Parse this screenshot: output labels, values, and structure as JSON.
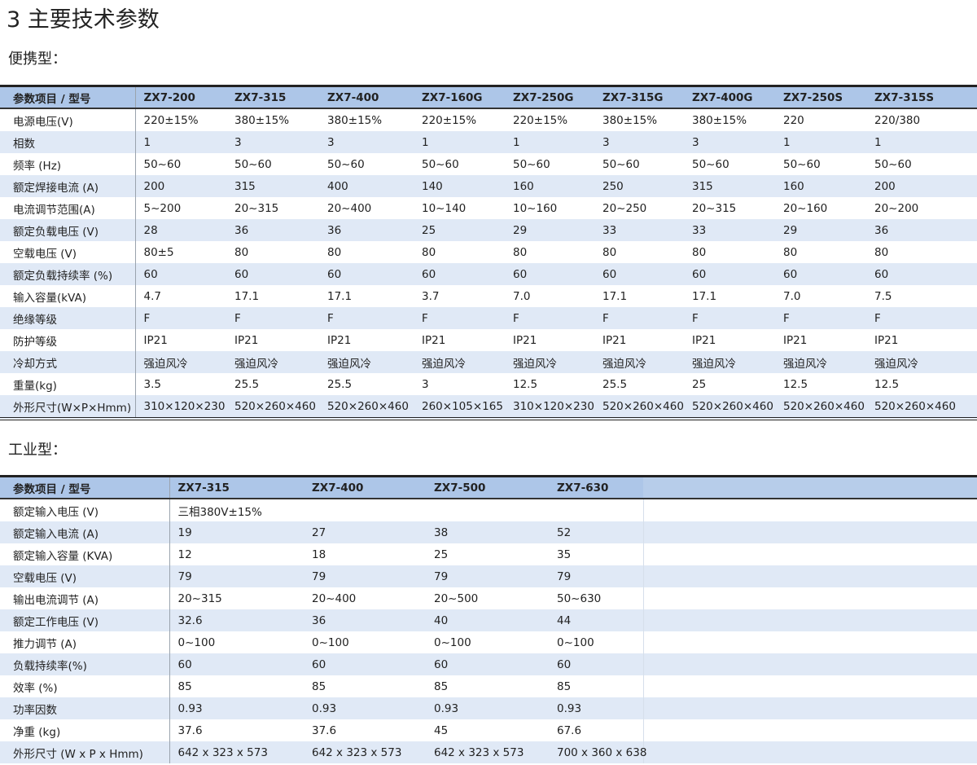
{
  "title": "3 主要技术参数",
  "portable": {
    "heading": "便携型：",
    "header": [
      "参数项目 / 型号",
      "ZX7-200",
      "ZX7-315",
      "ZX7-400",
      "ZX7-160G",
      "ZX7-250G",
      "ZX7-315G",
      "ZX7-400G",
      "ZX7-250S",
      "ZX7-315S"
    ],
    "rows": [
      [
        "电源电压(V)",
        "220±15%",
        "380±15%",
        "380±15%",
        "220±15%",
        "220±15%",
        "380±15%",
        "380±15%",
        "220",
        "220/380"
      ],
      [
        "相数",
        "1",
        "3",
        "3",
        "1",
        "1",
        "3",
        "3",
        "1",
        "1"
      ],
      [
        "频率 (Hz)",
        "50~60",
        "50~60",
        "50~60",
        "50~60",
        "50~60",
        "50~60",
        "50~60",
        "50~60",
        "50~60"
      ],
      [
        "额定焊接电流 (A)",
        "200",
        "315",
        "400",
        "140",
        "160",
        "250",
        "315",
        "160",
        "200"
      ],
      [
        "电流调节范围(A)",
        "5~200",
        "20~315",
        "20~400",
        "10~140",
        "10~160",
        "20~250",
        "20~315",
        "20~160",
        "20~200"
      ],
      [
        "额定负载电压 (V)",
        "28",
        "36",
        "36",
        "25",
        "29",
        "33",
        "33",
        "29",
        "36"
      ],
      [
        "空载电压  (V)",
        "80±5",
        "80",
        "80",
        "80",
        "80",
        "80",
        "80",
        "80",
        "80"
      ],
      [
        "额定负载持续率 (%)",
        "60",
        "60",
        "60",
        "60",
        "60",
        "60",
        "60",
        "60",
        "60"
      ],
      [
        "输入容量(kVA)",
        "4.7",
        "17.1",
        "17.1",
        "3.7",
        "7.0",
        "17.1",
        "17.1",
        "7.0",
        "7.5"
      ],
      [
        "绝缘等级",
        "F",
        "F",
        "F",
        "F",
        "F",
        "F",
        "F",
        "F",
        "F"
      ],
      [
        "防护等级",
        "IP21",
        "IP21",
        "IP21",
        "IP21",
        "IP21",
        "IP21",
        "IP21",
        "IP21",
        "IP21"
      ],
      [
        "冷却方式",
        "强迫风冷",
        "强迫风冷",
        "强迫风冷",
        "强迫风冷",
        "强迫风冷",
        "强迫风冷",
        "强迫风冷",
        "强迫风冷",
        "强迫风冷"
      ],
      [
        "重量(kg)",
        "3.5",
        "25.5",
        "25.5",
        "3",
        "12.5",
        "25.5",
        "25",
        "12.5",
        "12.5"
      ],
      [
        "外形尺寸(W×P×Hmm)",
        "310×120×230",
        "520×260×460",
        "520×260×460",
        "260×105×165",
        "310×120×230",
        "520×260×460",
        "520×260×460",
        "520×260×460",
        "520×260×460"
      ]
    ]
  },
  "industrial": {
    "heading": "工业型：",
    "header": [
      "参数项目 / 型号",
      "ZX7-315",
      "ZX7-400",
      "ZX7-500",
      "ZX7-630"
    ],
    "rows": [
      [
        "额定输入电压 (V)",
        "三相380V±15%",
        "",
        "",
        ""
      ],
      [
        "额定输入电流 (A)",
        "19",
        "27",
        "38",
        "52"
      ],
      [
        "额定输入容量 (KVA)",
        "12",
        "18",
        "25",
        "35"
      ],
      [
        "空载电压 (V)",
        "79",
        "79",
        "79",
        "79"
      ],
      [
        "输出电流调节 (A)",
        "20~315",
        "20~400",
        "20~500",
        "50~630"
      ],
      [
        "额定工作电压 (V)",
        "32.6",
        "36",
        "40",
        "44"
      ],
      [
        "推力调节 (A)",
        "0~100",
        "0~100",
        "0~100",
        "0~100"
      ],
      [
        "负载持续率(%)",
        "60",
        "60",
        "60",
        "60"
      ],
      [
        "效率 (%)",
        "85",
        "85",
        "85",
        "85"
      ],
      [
        "功率因数",
        "0.93",
        "0.93",
        "0.93",
        "0.93"
      ],
      [
        "净重 (kg)",
        "37.6",
        "37.6",
        "45",
        "67.6"
      ],
      [
        "外形尺寸 (W x P x Hmm)",
        "642 x 323 x 573",
        "642 x 323 x 573",
        "642 x 323 x 573",
        "700 x 360 x 638"
      ]
    ]
  },
  "colors": {
    "header_bg": "#adc6e8",
    "alt_row_bg": "#e0e9f6"
  }
}
